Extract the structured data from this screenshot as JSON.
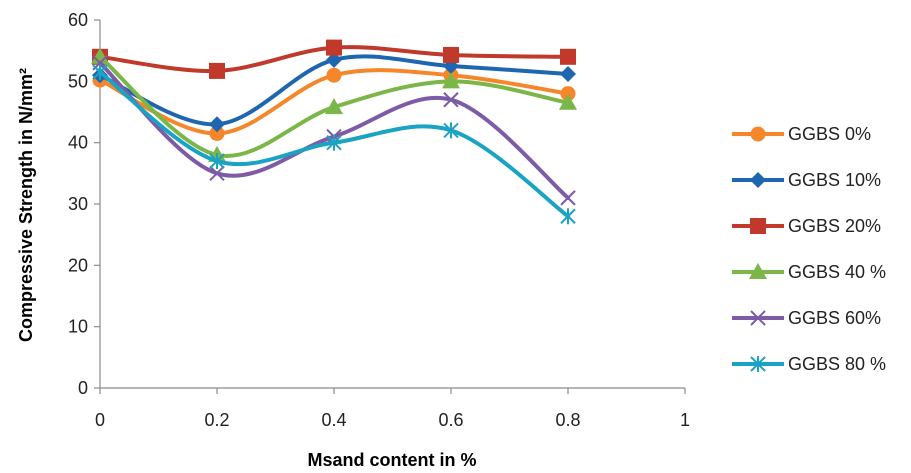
{
  "chart_data": {
    "type": "line",
    "title": "",
    "xlabel": "Msand content in  %",
    "ylabel": "Compressive Strength in N/mm²",
    "xlim": [
      0,
      1
    ],
    "ylim": [
      0,
      60
    ],
    "x_ticks": [
      "0",
      "0.2",
      "0.4",
      "0.6",
      "0.8",
      "1"
    ],
    "y_ticks": [
      "0",
      "10",
      "20",
      "30",
      "40",
      "50",
      "60"
    ],
    "grid": false,
    "smooth": true,
    "legend_position": "right",
    "x": [
      0,
      0.2,
      0.4,
      0.6,
      0.8
    ],
    "series": [
      {
        "name": "GGBS  0%",
        "color": "#F5862A",
        "marker": "circle",
        "values": [
          50.2,
          41.5,
          51.0,
          51.0,
          48.0
        ]
      },
      {
        "name": "GGBS 10%",
        "color": "#1F66B0",
        "marker": "diamond",
        "values": [
          51.0,
          43.0,
          53.5,
          52.5,
          51.2
        ]
      },
      {
        "name": "GGBS 20%",
        "color": "#C0392B",
        "marker": "square",
        "values": [
          54.0,
          51.7,
          55.5,
          54.3,
          54.0
        ]
      },
      {
        "name": "GGBS 40 %",
        "color": "#7AB648",
        "marker": "triangle",
        "values": [
          54.0,
          38.0,
          45.8,
          50.0,
          46.5
        ]
      },
      {
        "name": "GGBS 60%",
        "color": "#7D5BA6",
        "marker": "x",
        "values": [
          53.0,
          35.0,
          41.0,
          47.0,
          31.0
        ]
      },
      {
        "name": "GGBS 80 %",
        "color": "#1AA3C2",
        "marker": "star",
        "values": [
          51.5,
          37.0,
          40.0,
          42.0,
          28.0
        ]
      }
    ]
  }
}
